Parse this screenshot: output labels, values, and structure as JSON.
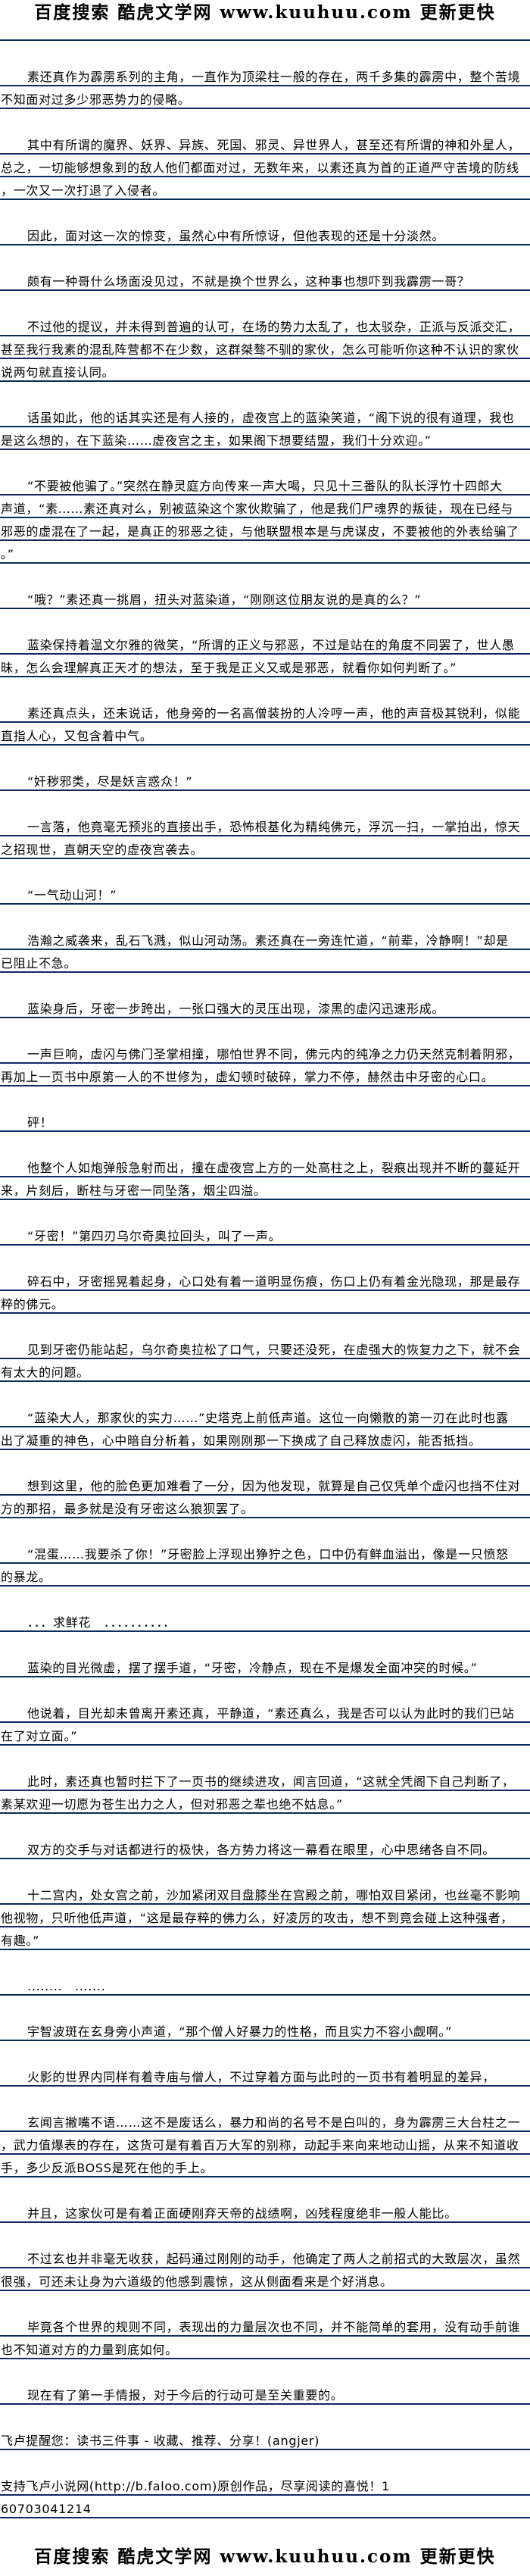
{
  "site_logo": "百度搜索 酷虎文学网 www.kuuhuu.com 更新更快",
  "colors": {
    "rule": "#0d2a5c",
    "text": "#000000",
    "background": "#ffffff"
  },
  "paragraphs": [
    [
      "素还真作为霹雳系列的主角，一直作为顶梁柱一般的存在，两千多集的霹雳中，整个苦境",
      "不知面对过多少邪恶势力的侵略。"
    ],
    [
      "其中有所谓的魔界、妖界、异族、死国、邪灵、异世界人，甚至还有所谓的神和外星人，",
      "总之，一切能够想象到的敌人他们都面对过，无数年来，以素还真为首的正道严守苦境的防线",
      "，一次又一次打退了入侵者。"
    ],
    [
      "因此，面对这一次的惊变，虽然心中有所惊讶，但他表现的还是十分淡然。"
    ],
    [
      "颇有一种哥什么场面没见过，不就是换个世界么，这种事也想吓到我霹雳一哥？"
    ],
    [
      "不过他的提议，并未得到普遍的认可，在场的势力太乱了，也太驳杂，正派与反派交汇，",
      "甚至我行我素的混乱阵营都不在少数，这群桀骜不驯的家伙，怎么可能听你这种不认识的家伙",
      "说两句就直接认同。"
    ],
    [
      "话虽如此，他的话其实还是有人接的，虚夜宫上的蓝染笑道，“阁下说的很有道理，我也",
      "是这么想的，在下蓝染……虚夜宫之主，如果阁下想要结盟，我们十分欢迎。”"
    ],
    [
      "“不要被他骗了。”突然在静灵庭方向传来一声大喝，只见十三番队的队长浮竹十四郎大",
      "声道，“素……素还真对么，别被蓝染这个家伙欺骗了，他是我们尸魂界的叛徒，现在已经与",
      "邪恶的虚混在了一起，是真正的邪恶之徒，与他联盟根本是与虎谋皮，不要被他的外表给骗了",
      "。”"
    ],
    [
      "“哦？”素还真一挑眉，扭头对蓝染道，“刚刚这位朋友说的是真的么？”"
    ],
    [
      "蓝染保持着温文尔雅的微笑，“所谓的正义与邪恶，不过是站在的角度不同罢了，世人愚",
      "昧，怎么会理解真正天才的想法，至于我是正义又或是邪恶，就看你如何判断了。”"
    ],
    [
      "素还真点头，还未说话，他身旁的一名高僧装扮的人冷哼一声，他的声音极其锐利，似能",
      "直指人心，又包含着中气。"
    ],
    [
      "“奸秽邪类，尽是妖言惑众！”"
    ],
    [
      "一言落，他竟毫无预兆的直接出手，恐怖根基化为精纯佛元，浮沉一扫，一掌拍出，惊天",
      "之招现世，直朝天空的虚夜宫袭去。"
    ],
    [
      "“一气动山河！”"
    ],
    [
      "浩瀚之威袭来，乱石飞溅，似山河动荡。素还真在一旁连忙道，“前辈，冷静啊！”却是",
      "已阻止不急。"
    ],
    [
      "蓝染身后，牙密一步跨出，一张口强大的灵压出现，漆黑的虚闪迅速形成。"
    ],
    [
      "一声巨响，虚闪与佛门圣掌相撞，哪怕世界不同，佛元内的纯净之力仍天然克制着阴邪，",
      "再加上一页书中原第一人的不世修为，虚幻顿时破碎，掌力不停，赫然击中牙密的心口。"
    ],
    [
      "砰！"
    ],
    [
      "他整个人如炮弹般急射而出，撞在虚夜宫上方的一处高柱之上，裂痕出现并不断的蔓延开",
      "来，片刻后，断柱与牙密一同坠落，烟尘四溢。"
    ],
    [
      "“牙密！”第四刃乌尔奇奥拉回头，叫了一声。"
    ],
    [
      "碎石中，牙密摇晃着起身，心口处有着一道明显伤痕，伤口上仍有着金光隐现，那是最存",
      "粹的佛元。"
    ],
    [
      "见到牙密仍能站起，乌尔奇奥拉松了口气，只要还没死，在虚强大的恢复力之下，就不会",
      "有太大的问题。"
    ],
    [
      "“蓝染大人，那家伙的实力……”史塔克上前低声道。这位一向懒散的第一刃在此时也露",
      "出了凝重的神色，心中暗自分析着，如果刚刚那一下换成了自己释放虚闪，能否抵挡。"
    ],
    [
      "想到这里，他的脸色更加难看了一分，因为他发现，就算是自己仅凭单个虚闪也挡不住对",
      "方的那招，最多就是没有牙密这么狼狈罢了。"
    ],
    [
      "“混蛋……我要杀了你！”牙密脸上浮现出狰狞之色，口中仍有鲜血溢出，像是一只愤怒",
      "的暴龙。"
    ],
    [
      "．．．求鲜花　．．．．．．．．．．"
    ],
    [
      "蓝染的目光微虚，摆了摆手道，“牙密，冷静点，现在不是爆发全面冲突的时候。”"
    ],
    [
      "他说着，目光却未曾离开素还真，平静道，“素还真么，我是否可以认为此时的我们已站",
      "在了对立面。”"
    ],
    [
      "此时，素还真也暂时拦下了一页书的继续进攻，闻言回道，“这就全凭阁下自己判断了，",
      "素某欢迎一切愿为苍生出力之人，但对邪恶之辈也绝不姑息。”"
    ],
    [
      "双方的交手与对话都进行的极快，各方势力将这一幕看在眼里，心中思绪各自不同。"
    ],
    [
      "十二宫内，处女宫之前，沙加紧闭双目盘膝坐在宫殿之前，哪怕双目紧闭，也丝毫不影响",
      "他视物，只听他低声道，“这是最存粹的佛力么，好凌厉的攻击，想不到竟会碰上这种强者，",
      "有趣。”"
    ],
    [
      "........　......."
    ],
    [
      "宇智波斑在玄身旁小声道，“那个僧人好暴力的性格，而且实力不容小觑啊。”"
    ],
    [
      "火影的世界内同样有着寺庙与僧人，不过穿着方面与此时的一页书有着明显的差异，"
    ],
    [
      "玄闻言撇嘴不语……这不是废话么，暴力和尚的名号不是白叫的，身为霹雳三大台柱之一",
      "，武力值爆表的存在，这货可是有着百万大军的别称，动起手来向来地动山摇，从来不知道收",
      "手，多少反派BOSS是死在他的手上。"
    ],
    [
      "并且，这家伙可是有着正面硬刚弃天帝的战绩啊，凶残程度绝非一般人能比。"
    ],
    [
      "不过玄也并非毫无收获，起码通过刚刚的动手，他确定了两人之前招式的大致层次，虽然",
      "很强，可还未让身为六道级的他感到震惊，这从侧面看来是个好消息。"
    ],
    [
      "毕竟各个世界的规则不同，表现出的力量层次也不同，并不能简单的套用，没有动手前谁",
      "也不知道对方的力量到底如何。"
    ],
    [
      "现在有了第一手情报，对于今后的行动可是至关重要的。"
    ]
  ],
  "footer": [
    [
      "飞卢提醒您：读书三件事 - 收藏、推荐、分享！(angjer)"
    ],
    [
      "支持飞卢小说网(http://b.faloo.com)原创作品，尽享阅读的喜悦！1",
      "60703041214"
    ]
  ]
}
